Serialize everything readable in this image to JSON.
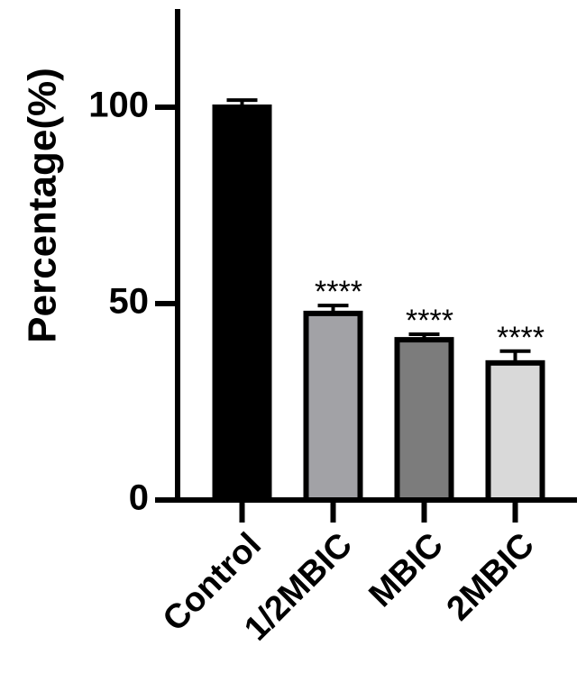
{
  "chart_data": {
    "type": "bar",
    "y_label": "Percentage(%)",
    "categories": [
      "Control",
      "1/2MBIC",
      "MBIC",
      "2MBIC"
    ],
    "values": [
      100,
      47.5,
      40.8,
      34.9
    ],
    "errors": [
      1.8,
      2,
      1.4,
      3
    ],
    "colors": [
      "#000000",
      "#a2a2a6",
      "#7c7c7c",
      "#d9d9d9"
    ],
    "annotations": [
      null,
      "****",
      "****",
      "****"
    ],
    "ylim": [
      0,
      125
    ],
    "yticks": [
      0,
      50,
      100
    ],
    "grid": false
  }
}
